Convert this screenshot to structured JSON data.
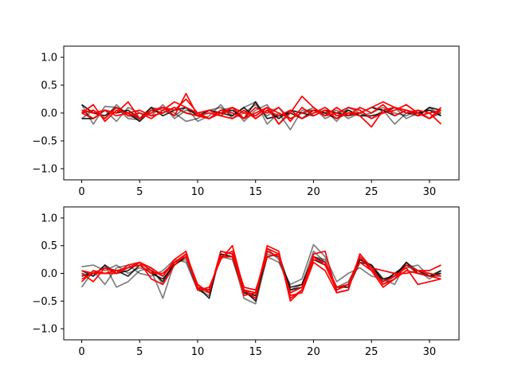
{
  "chart_data": [
    {
      "type": "line",
      "xlim": [
        -1.55,
        32.55
      ],
      "ylim": [
        -1.2,
        1.2
      ],
      "xticks": [
        0,
        5,
        10,
        15,
        20,
        25,
        30
      ],
      "yticks": [
        -1.0,
        -0.5,
        0.0,
        0.5,
        1.0
      ],
      "xtick_labels": [
        "0",
        "5",
        "10",
        "15",
        "20",
        "25",
        "30"
      ],
      "ytick_labels": [
        "−1.0",
        "−0.5",
        "0.0",
        "0.5",
        "1.0"
      ],
      "grid": false,
      "x": [
        0,
        1,
        2,
        3,
        4,
        5,
        6,
        7,
        8,
        9,
        10,
        11,
        12,
        13,
        14,
        15,
        16,
        17,
        18,
        19,
        20,
        21,
        22,
        23,
        24,
        25,
        26,
        27,
        28,
        29,
        30,
        31
      ],
      "series": [
        {
          "color": "#000000",
          "opacity": 0.5,
          "values": [
            0.15,
            -0.2,
            0.12,
            0.1,
            -0.1,
            -0.12,
            0.05,
            0.1,
            0.0,
            -0.15,
            -0.1,
            0.05,
            0.1,
            -0.05,
            0.1,
            0.2,
            -0.2,
            0.0,
            -0.3,
            0.05,
            0.05,
            0.0,
            0.05,
            -0.1,
            0.0,
            0.1,
            0.05,
            -0.2,
            0.0,
            -0.05,
            0.1,
            -0.05
          ]
        },
        {
          "color": "#000000",
          "opacity": 0.5,
          "values": [
            -0.1,
            0.05,
            -0.1,
            0.15,
            -0.05,
            -0.1,
            0.1,
            0.05,
            -0.05,
            0.1,
            -0.15,
            -0.05,
            0.15,
            -0.1,
            0.0,
            0.15,
            -0.05,
            0.1,
            -0.1,
            0.0,
            0.1,
            -0.1,
            0.0,
            0.05,
            -0.05,
            0.0,
            0.1,
            0.0,
            -0.05,
            0.05,
            -0.1,
            0.0
          ]
        },
        {
          "color": "#000000",
          "opacity": 0.5,
          "values": [
            0.05,
            -0.1,
            0.05,
            -0.15,
            0.1,
            0.0,
            -0.05,
            0.15,
            -0.1,
            0.05,
            0.0,
            -0.1,
            0.05,
            0.1,
            -0.15,
            0.05,
            0.15,
            -0.2,
            0.05,
            -0.1,
            0.0,
            0.05,
            -0.15,
            0.1,
            0.0,
            -0.1,
            0.05,
            0.1,
            -0.1,
            0.0,
            0.05,
            0.0
          ]
        },
        {
          "color": "#000000",
          "opacity": 0.85,
          "values": [
            0.15,
            0.0,
            -0.05,
            0.1,
            0.0,
            -0.15,
            0.05,
            0.0,
            0.1,
            0.0,
            -0.05,
            -0.1,
            0.0,
            0.05,
            -0.1,
            0.2,
            -0.1,
            -0.05,
            0.0,
            -0.1,
            0.05,
            0.0,
            -0.1,
            0.05,
            -0.05,
            -0.05,
            0.0,
            0.1,
            0.0,
            0.0,
            0.05,
            -0.05
          ]
        },
        {
          "color": "#000000",
          "opacity": 0.85,
          "values": [
            -0.1,
            -0.1,
            0.05,
            0.0,
            0.05,
            -0.1,
            0.1,
            -0.05,
            0.05,
            0.1,
            -0.05,
            0.05,
            0.0,
            -0.05,
            0.1,
            -0.1,
            0.05,
            -0.1,
            0.05,
            0.0,
            -0.05,
            0.05,
            0.0,
            -0.05,
            0.0,
            0.1,
            0.05,
            -0.05,
            0.05,
            -0.05,
            0.1,
            0.05
          ]
        },
        {
          "color": "#ff0000",
          "opacity": 1,
          "values": [
            0.0,
            0.15,
            -0.15,
            0.05,
            0.0,
            -0.1,
            0.0,
            0.1,
            -0.05,
            0.35,
            -0.05,
            -0.1,
            0.0,
            0.1,
            -0.1,
            0.0,
            0.1,
            -0.2,
            0.0,
            0.3,
            0.1,
            -0.05,
            0.1,
            -0.05,
            0.1,
            0.0,
            0.15,
            -0.05,
            0.05,
            0.0,
            -0.1,
            0.05
          ]
        },
        {
          "color": "#ff0000",
          "opacity": 1,
          "values": [
            0.0,
            -0.1,
            0.05,
            0.0,
            0.2,
            -0.1,
            0.05,
            0.1,
            0.05,
            0.25,
            0.0,
            -0.1,
            0.05,
            0.0,
            -0.1,
            0.1,
            0.0,
            0.1,
            -0.15,
            0.1,
            -0.05,
            0.05,
            -0.1,
            0.0,
            0.0,
            0.1,
            0.2,
            0.1,
            0.05,
            -0.05,
            0.0,
            -0.2
          ]
        },
        {
          "color": "#ff0000",
          "opacity": 1,
          "values": [
            0.05,
            0.0,
            0.05,
            -0.05,
            0.0,
            0.05,
            -0.05,
            0.0,
            0.1,
            0.0,
            -0.05,
            0.0,
            -0.05,
            0.1,
            0.0,
            -0.05,
            0.1,
            0.0,
            -0.1,
            0.0,
            0.05,
            -0.05,
            0.0,
            0.1,
            0.05,
            -0.1,
            0.0,
            0.05,
            0.15,
            0.0,
            -0.1,
            0.1
          ]
        },
        {
          "color": "#ff0000",
          "opacity": 1,
          "values": [
            0.0,
            0.05,
            -0.1,
            0.1,
            -0.05,
            0.0,
            -0.1,
            0.05,
            0.2,
            0.1,
            0.0,
            0.05,
            -0.05,
            -0.1,
            0.05,
            -0.1,
            0.05,
            -0.05,
            0.05,
            -0.1,
            0.0,
            0.1,
            -0.05,
            0.0,
            -0.05,
            -0.25,
            0.05,
            0.1,
            0.0,
            0.05,
            0.0,
            0.05
          ]
        }
      ]
    },
    {
      "type": "line",
      "xlim": [
        -1.55,
        32.55
      ],
      "ylim": [
        -1.2,
        1.2
      ],
      "xticks": [
        0,
        5,
        10,
        15,
        20,
        25,
        30
      ],
      "yticks": [
        -1.0,
        -0.5,
        0.0,
        0.5,
        1.0
      ],
      "xtick_labels": [
        "0",
        "5",
        "10",
        "15",
        "20",
        "25",
        "30"
      ],
      "ytick_labels": [
        "−1.0",
        "−0.5",
        "0.0",
        "0.5",
        "1.0"
      ],
      "grid": false,
      "x": [
        0,
        1,
        2,
        3,
        4,
        5,
        6,
        7,
        8,
        9,
        10,
        11,
        12,
        13,
        14,
        15,
        16,
        17,
        18,
        19,
        20,
        21,
        22,
        23,
        24,
        25,
        26,
        27,
        28,
        29,
        30,
        31
      ],
      "series": [
        {
          "color": "#000000",
          "opacity": 0.5,
          "values": [
            0.12,
            0.15,
            0.05,
            0.15,
            0.0,
            0.1,
            0.05,
            -0.45,
            0.2,
            0.25,
            -0.3,
            -0.4,
            0.35,
            0.3,
            -0.45,
            -0.55,
            0.3,
            0.2,
            -0.2,
            -0.1,
            0.52,
            0.3,
            -0.15,
            0.0,
            0.1,
            -0.05,
            -0.1,
            -0.2,
            0.2,
            0.05,
            -0.1,
            0.05
          ]
        },
        {
          "color": "#000000",
          "opacity": 0.5,
          "values": [
            -0.25,
            0.05,
            -0.2,
            0.1,
            0.15,
            0.0,
            -0.05,
            0.05,
            0.25,
            0.2,
            -0.3,
            -0.35,
            0.4,
            0.35,
            -0.3,
            -0.4,
            0.35,
            0.3,
            -0.3,
            -0.2,
            0.4,
            0.2,
            -0.25,
            -0.15,
            0.25,
            0.1,
            -0.15,
            0.0,
            0.1,
            0.15,
            -0.05,
            -0.05
          ]
        },
        {
          "color": "#000000",
          "opacity": 0.5,
          "values": [
            0.0,
            -0.05,
            0.15,
            -0.25,
            -0.15,
            0.05,
            0.1,
            -0.2,
            0.15,
            0.3,
            -0.25,
            -0.3,
            0.3,
            0.25,
            -0.35,
            -0.45,
            0.45,
            0.25,
            -0.35,
            -0.25,
            0.3,
            0.25,
            -0.3,
            -0.2,
            0.3,
            0.1,
            -0.2,
            -0.05,
            0.15,
            0.0,
            -0.05,
            0.0
          ]
        },
        {
          "color": "#000000",
          "opacity": 0.85,
          "values": [
            0.05,
            -0.05,
            0.15,
            0.0,
            0.05,
            0.2,
            0.05,
            -0.15,
            0.2,
            0.35,
            -0.25,
            -0.45,
            0.4,
            0.35,
            -0.3,
            -0.5,
            0.4,
            0.3,
            -0.25,
            -0.2,
            0.3,
            0.2,
            -0.3,
            -0.2,
            0.25,
            0.15,
            -0.1,
            -0.05,
            0.2,
            0.0,
            -0.05,
            0.05
          ]
        },
        {
          "color": "#000000",
          "opacity": 0.85,
          "values": [
            -0.05,
            0.0,
            0.1,
            0.05,
            -0.05,
            0.15,
            0.0,
            -0.1,
            0.15,
            0.3,
            -0.2,
            -0.35,
            0.35,
            0.3,
            -0.35,
            -0.4,
            0.3,
            0.35,
            -0.3,
            -0.25,
            0.25,
            0.15,
            -0.25,
            -0.25,
            0.2,
            0.15,
            -0.15,
            0.0,
            0.15,
            0.05,
            -0.05,
            0.0
          ]
        },
        {
          "color": "#ff0000",
          "opacity": 1,
          "values": [
            -0.1,
            0.0,
            0.1,
            0.0,
            0.15,
            0.2,
            0.1,
            -0.05,
            0.25,
            0.4,
            -0.3,
            -0.25,
            0.25,
            0.5,
            -0.3,
            -0.45,
            0.5,
            0.4,
            -0.5,
            -0.3,
            0.35,
            0.4,
            -0.35,
            -0.3,
            0.35,
            0.1,
            0.05,
            0.0,
            0.0,
            0.05,
            0.05,
            0.15
          ]
        },
        {
          "color": "#ff0000",
          "opacity": 1,
          "values": [
            0.0,
            -0.15,
            0.1,
            0.05,
            0.1,
            0.2,
            -0.1,
            -0.2,
            0.15,
            0.35,
            -0.2,
            -0.35,
            0.4,
            0.35,
            -0.4,
            -0.35,
            0.45,
            0.35,
            -0.45,
            -0.3,
            0.3,
            0.15,
            -0.3,
            -0.2,
            0.3,
            0.05,
            -0.25,
            -0.1,
            0.15,
            0.05,
            0.0,
            -0.05
          ]
        },
        {
          "color": "#ff0000",
          "opacity": 1,
          "values": [
            0.05,
            0.0,
            0.0,
            0.05,
            0.1,
            0.15,
            0.0,
            0.0,
            0.2,
            0.3,
            -0.25,
            -0.3,
            0.3,
            0.3,
            -0.3,
            -0.35,
            0.4,
            0.3,
            -0.35,
            -0.25,
            0.25,
            0.2,
            -0.25,
            -0.2,
            0.2,
            0.05,
            -0.15,
            -0.05,
            0.1,
            -0.2,
            -0.15,
            -0.1
          ]
        },
        {
          "color": "#ff0000",
          "opacity": 1,
          "values": [
            -0.15,
            0.05,
            0.0,
            0.0,
            0.1,
            0.2,
            0.05,
            -0.05,
            0.2,
            0.35,
            -0.3,
            -0.3,
            0.3,
            0.4,
            -0.25,
            -0.3,
            0.3,
            0.35,
            -0.4,
            -0.35,
            0.2,
            0.05,
            -0.35,
            -0.3,
            0.35,
            0.1,
            -0.2,
            -0.1,
            0.05,
            0.0,
            -0.05,
            -0.1
          ]
        }
      ]
    }
  ]
}
